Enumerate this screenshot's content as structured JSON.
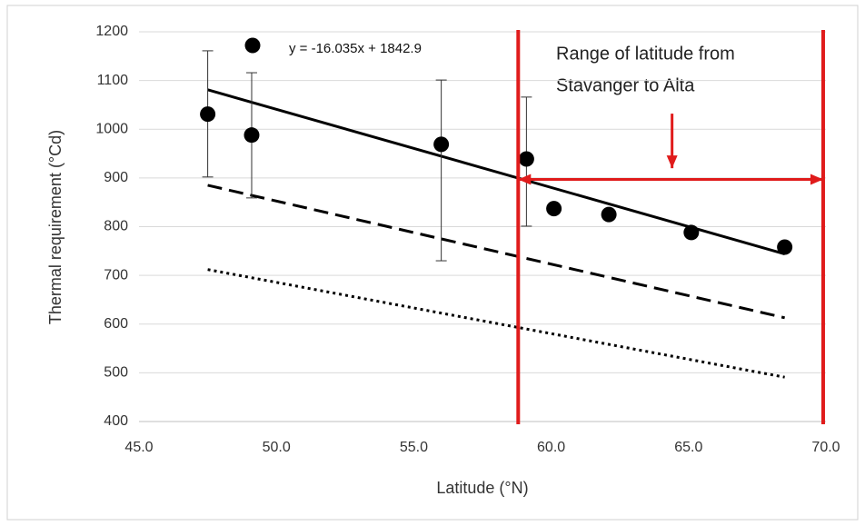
{
  "chart_data": {
    "type": "scatter",
    "xlabel": "Latitude (°N)",
    "ylabel": "Thermal requirement (°Cd)",
    "xlim": [
      45,
      70
    ],
    "ylim": [
      400,
      1200
    ],
    "xticks": [
      {
        "value": 45,
        "label": "45.0"
      },
      {
        "value": 50,
        "label": "50.0"
      },
      {
        "value": 55,
        "label": "55.0"
      },
      {
        "value": 60,
        "label": "60.0"
      },
      {
        "value": 65,
        "label": "65.0"
      },
      {
        "value": 70,
        "label": "70.0"
      }
    ],
    "yticks": [
      400,
      500,
      600,
      700,
      800,
      900,
      1000,
      1100,
      1200
    ],
    "grid": true,
    "points": {
      "color": "#000000",
      "x": [
        47.5,
        49.1,
        56.0,
        59.1,
        60.1,
        62.1,
        65.1,
        68.5
      ],
      "values": [
        1031,
        988,
        969,
        939,
        837,
        825,
        788,
        758
      ],
      "errors_plus": [
        130,
        128,
        132,
        127,
        null,
        null,
        null,
        null
      ],
      "errors_minus": [
        129,
        129,
        239,
        138,
        null,
        null,
        null,
        null
      ]
    },
    "lines": [
      {
        "style": "solid",
        "color": "#000000",
        "x": [
          47.5,
          68.5
        ],
        "values": [
          1081,
          744
        ]
      },
      {
        "style": "dashed",
        "color": "#000000",
        "x": [
          47.5,
          68.5
        ],
        "values": [
          885,
          613
        ]
      },
      {
        "style": "dotted",
        "color": "#000000",
        "x": [
          47.5,
          68.5
        ],
        "values": [
          712,
          491
        ]
      }
    ],
    "range_lines": {
      "color": "#e01b1b",
      "x": [
        58.8,
        69.9
      ]
    },
    "arrows": [
      {
        "color": "#e01b1b",
        "heads": "both",
        "x": [
          58.8,
          69.9
        ],
        "values": [
          897,
          897
        ]
      },
      {
        "color": "#e01b1b",
        "heads": "end",
        "x": [
          64.4,
          64.4
        ],
        "values": [
          1032,
          920
        ]
      }
    ],
    "annotations": [
      "y = -16.035x + 1842.9",
      "Range of latitude from",
      "Stavanger to Alta"
    ]
  }
}
